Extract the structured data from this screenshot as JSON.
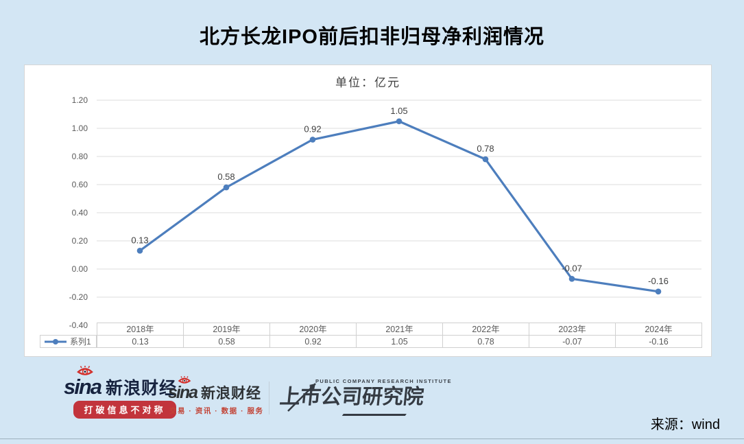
{
  "page": {
    "title": "北方长龙IPO前后扣非归母净利润情况",
    "background_color": "#d3e6f4"
  },
  "chart_data": {
    "type": "line",
    "title": "北方长龙IPO前后扣非归母净利润情况",
    "subtitle": "单位：亿元",
    "categories": [
      "2018年",
      "2019年",
      "2020年",
      "2021年",
      "2022年",
      "2023年",
      "2024年"
    ],
    "series": [
      {
        "name": "系列1",
        "values": [
          0.13,
          0.58,
          0.92,
          1.05,
          0.78,
          -0.07,
          -0.16
        ]
      }
    ],
    "point_labels": [
      "0.13",
      "0.58",
      "0.92",
      "1.05",
      "0.78",
      "-0.07",
      "-0.16"
    ],
    "y_ticks": [
      1.2,
      1.0,
      0.8,
      0.6,
      0.4,
      0.2,
      0.0,
      -0.2,
      -0.4
    ],
    "y_tick_labels": [
      "1.20",
      "1.00",
      "0.80",
      "0.60",
      "0.40",
      "0.20",
      "0.00",
      "-0.20",
      "-0.40"
    ],
    "ylim": [
      -0.4,
      1.2
    ],
    "grid": true,
    "line_color": "#4d7ebd",
    "legend_position": "bottom-table"
  },
  "data_table": {
    "legend_label": "系列1",
    "headers": [
      "2018年",
      "2019年",
      "2020年",
      "2021年",
      "2022年",
      "2023年",
      "2024年"
    ],
    "values": [
      "0.13",
      "0.58",
      "0.92",
      "1.05",
      "0.78",
      "-0.07",
      "-0.16"
    ]
  },
  "footer": {
    "sina_primary": {
      "wordmark": "sina",
      "name": "新浪财经",
      "slogan": "打破信息不对称"
    },
    "sina_secondary": {
      "wordmark": "sina",
      "name": "新浪财经",
      "tagline": "交易 · 资讯 · 数据 · 服务"
    },
    "pcri": {
      "en": "PUBLIC COMPANY RESEARCH INSTITUTE",
      "cn": "上市公司研究院"
    },
    "source": "来源：wind"
  },
  "colors": {
    "background": "#d3e6f4",
    "panel": "#ffffff",
    "line": "#4d7ebd",
    "grid": "#dcdcdc",
    "axis_text": "#595959",
    "label_text": "#404040",
    "table_border": "#d0d0d0",
    "sina_navy": "#17233f",
    "sina_red": "#d2302c",
    "badge_red": "#c2343c",
    "tagline_red": "#c24436",
    "pcri_dark": "#353b43"
  }
}
